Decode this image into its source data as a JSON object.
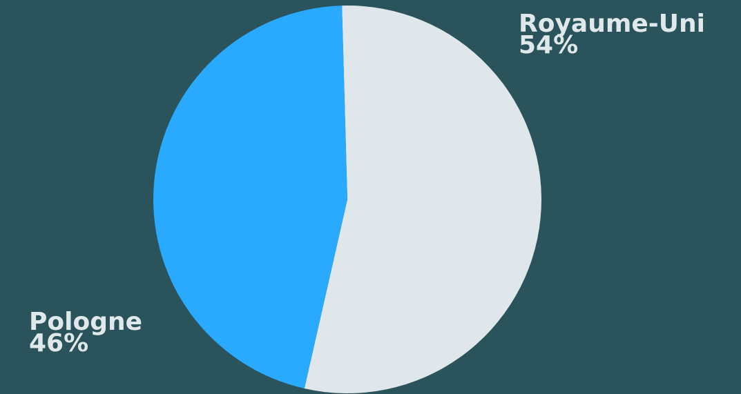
{
  "colors": {
    "background": "#2b535c",
    "label_text": "#dfe8ea"
  },
  "chart_data": {
    "type": "pie",
    "slices": [
      {
        "label": "Royaume-Uni",
        "value": 54,
        "display": "54%",
        "color": "#dfe7ea"
      },
      {
        "label": "Pologne",
        "value": 46,
        "display": "46%",
        "color": "#29aaff"
      }
    ]
  }
}
